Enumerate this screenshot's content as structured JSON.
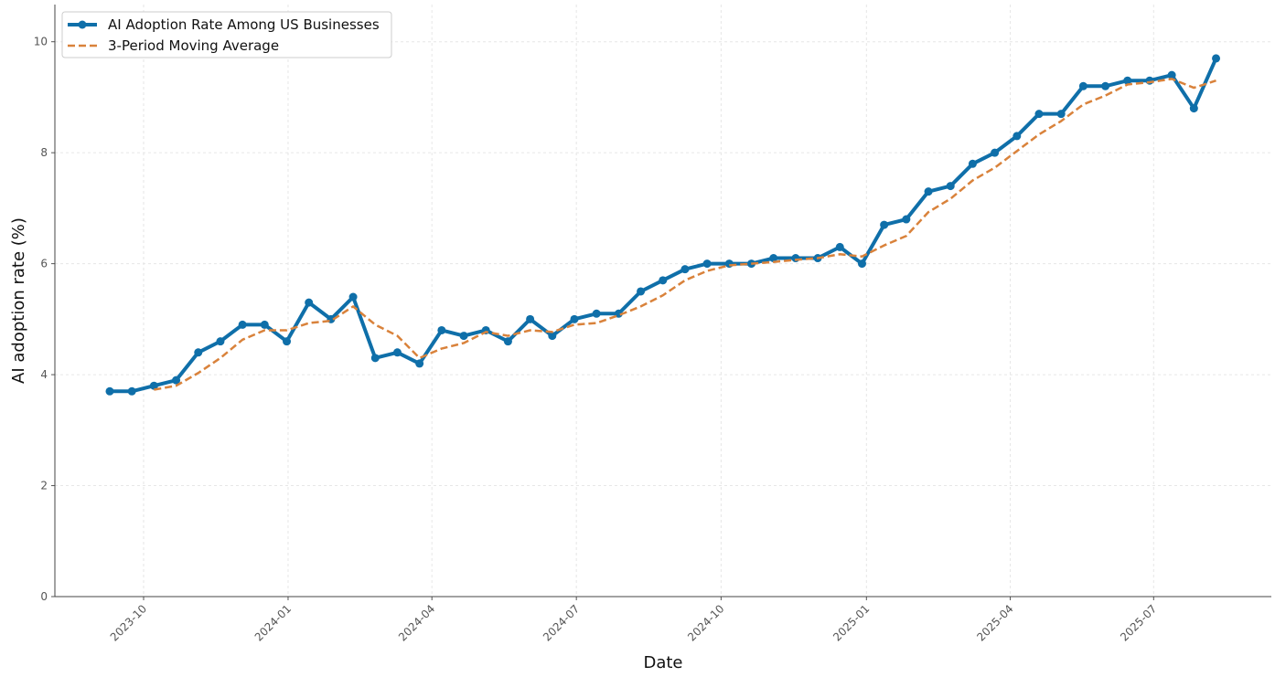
{
  "chart_data": {
    "type": "line",
    "xlabel": "Date",
    "ylabel": "AI adoption rate (%)",
    "series": [
      {
        "name": "AI Adoption Rate Among US Businesses",
        "color": "#0f6fa9",
        "style": "solid-markers",
        "values": [
          3.7,
          3.7,
          3.8,
          3.9,
          4.4,
          4.6,
          4.9,
          4.9,
          4.6,
          5.3,
          5.0,
          5.4,
          4.3,
          4.4,
          4.2,
          4.8,
          4.7,
          4.8,
          4.6,
          5.0,
          4.7,
          5.0,
          5.1,
          5.1,
          5.5,
          5.7,
          5.9,
          6.0,
          6.0,
          6.0,
          6.1,
          6.1,
          6.1,
          6.3,
          6.0,
          6.7,
          6.8,
          7.3,
          7.4,
          7.8,
          8.0,
          8.3,
          8.7,
          8.7,
          9.2,
          9.2,
          9.3,
          9.3,
          9.4,
          8.8,
          9.7
        ]
      },
      {
        "name": "3-Period Moving Average",
        "color": "#d9823b",
        "style": "dashed",
        "values": [
          null,
          null,
          3.73,
          3.8,
          4.03,
          4.3,
          4.63,
          4.8,
          4.8,
          4.93,
          4.97,
          5.23,
          4.9,
          4.7,
          4.3,
          4.47,
          4.57,
          4.77,
          4.7,
          4.8,
          4.77,
          4.9,
          4.93,
          5.07,
          5.23,
          5.43,
          5.7,
          5.87,
          5.97,
          6.0,
          6.03,
          6.07,
          6.1,
          6.17,
          6.13,
          6.33,
          6.5,
          6.93,
          7.17,
          7.5,
          7.73,
          8.03,
          8.33,
          8.57,
          8.87,
          9.03,
          9.23,
          9.27,
          9.33,
          9.17,
          9.3
        ]
      }
    ],
    "xlim": [
      -2.48,
      52.5
    ],
    "xticks": [
      {
        "value": 1.53,
        "label": "2023-10"
      },
      {
        "value": 8.06,
        "label": "2024-01"
      },
      {
        "value": 14.56,
        "label": "2024-04"
      },
      {
        "value": 21.09,
        "label": "2024-07"
      },
      {
        "value": 27.63,
        "label": "2024-10"
      },
      {
        "value": 34.2,
        "label": "2025-01"
      },
      {
        "value": 40.7,
        "label": "2025-04"
      },
      {
        "value": 47.18,
        "label": "2025-07"
      }
    ],
    "ylim": [
      0,
      10.67
    ],
    "yticks": [
      0,
      2,
      4,
      6,
      8,
      10
    ],
    "grid": true,
    "legend": "upper-left"
  }
}
